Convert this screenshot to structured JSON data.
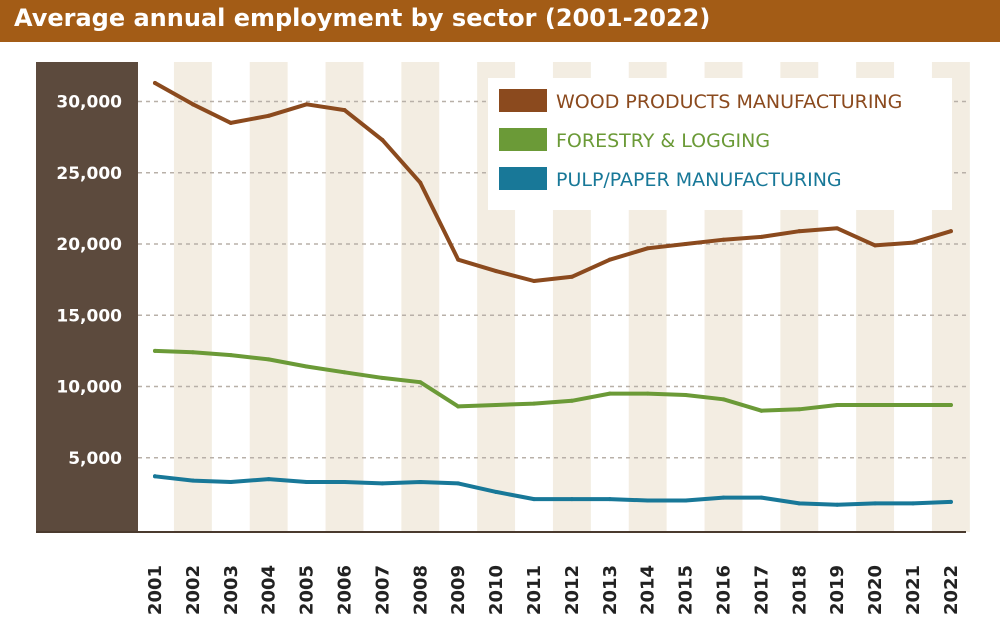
{
  "title": "Average annual employment by sector (2001-2022)",
  "chart_data": {
    "type": "line",
    "title": "Average annual employment by sector (2001-2022)",
    "xlabel": "",
    "ylabel": "",
    "x": [
      "2001",
      "2002",
      "2003",
      "2004",
      "2005",
      "2006",
      "2007",
      "2008",
      "2009",
      "2010",
      "2011",
      "2012",
      "2013",
      "2014",
      "2015",
      "2016",
      "2017",
      "2018",
      "2019",
      "2020",
      "2021",
      "2022"
    ],
    "ylim": [
      0,
      33000
    ],
    "yticks": [
      5000,
      10000,
      15000,
      20000,
      25000,
      30000
    ],
    "ytick_labels": [
      "5,000",
      "10,000",
      "15,000",
      "20,000",
      "25,000",
      "30,000"
    ],
    "grid": true,
    "legend_position": "top-right",
    "series": [
      {
        "name": "WOOD PRODUCTS MANUFACTURING",
        "color": "#8b4a1e",
        "values": [
          31300,
          29800,
          28500,
          29000,
          29800,
          29400,
          27300,
          24300,
          18900,
          18100,
          17400,
          17700,
          18900,
          19700,
          20000,
          20300,
          20500,
          20900,
          21100,
          19900,
          20100,
          20900
        ]
      },
      {
        "name": "FORESTRY & LOGGING",
        "color": "#6b9a37",
        "values": [
          12500,
          12400,
          12200,
          11900,
          11400,
          11000,
          10600,
          10300,
          8600,
          8700,
          8800,
          9000,
          9500,
          9500,
          9400,
          9100,
          8300,
          8400,
          8700,
          8700,
          8700,
          8700
        ]
      },
      {
        "name": "PULP/PAPER MANUFACTURING",
        "color": "#187898",
        "values": [
          3700,
          3400,
          3300,
          3500,
          3300,
          3300,
          3200,
          3300,
          3200,
          2600,
          2100,
          2100,
          2100,
          2000,
          2000,
          2200,
          2200,
          1800,
          1700,
          1800,
          1800,
          1900
        ]
      }
    ]
  },
  "colors": {
    "title_bar": "#a35c16",
    "y_axis_panel": "#5c4a3d",
    "band_shade": "#f3ede2",
    "grid": "#b8b0a8"
  }
}
